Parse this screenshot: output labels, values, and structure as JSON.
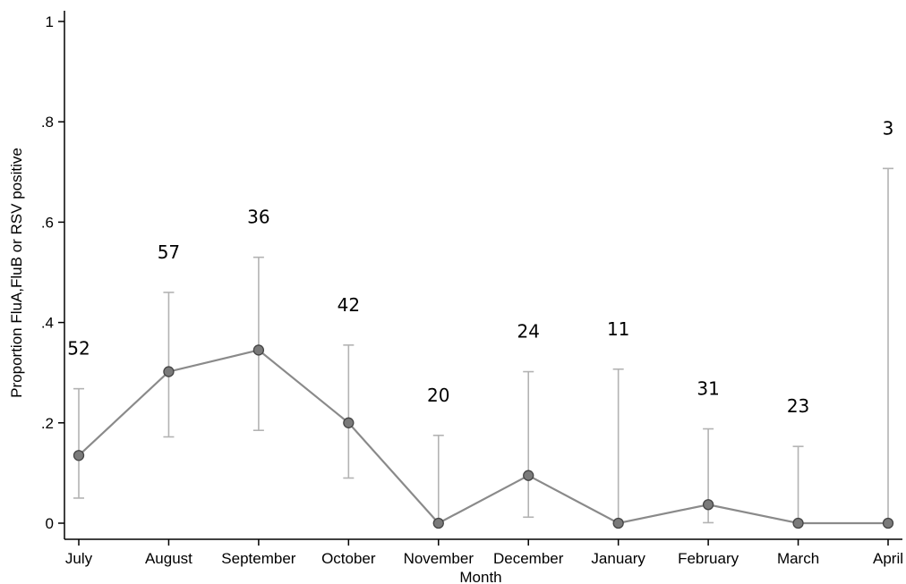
{
  "chart_data": {
    "type": "line",
    "xlabel": "Month",
    "ylabel": "Proportion FluA,FluB or RSV positive",
    "ylim": [
      0,
      1
    ],
    "yticks": [
      {
        "value": 0,
        "label": "0"
      },
      {
        "value": 0.2,
        "label": ".2"
      },
      {
        "value": 0.4,
        "label": ".4"
      },
      {
        "value": 0.6,
        "label": ".6"
      },
      {
        "value": 0.8,
        "label": ".8"
      },
      {
        "value": 1,
        "label": "1"
      }
    ],
    "categories": [
      "July",
      "August",
      "September",
      "October",
      "November",
      "December",
      "January",
      "February",
      "March",
      "April"
    ],
    "values": [
      0.135,
      0.302,
      0.345,
      0.2,
      0.0,
      0.095,
      0.0,
      0.037,
      0.0,
      0.0
    ],
    "ci_lower": [
      0.05,
      0.172,
      0.185,
      0.09,
      0.0,
      0.012,
      0.0,
      0.001,
      0.0,
      0.0
    ],
    "ci_upper": [
      0.268,
      0.46,
      0.53,
      0.355,
      0.175,
      0.302,
      0.307,
      0.188,
      0.153,
      0.707
    ],
    "n_labels": [
      "52",
      "57",
      "36",
      "42",
      "20",
      "24",
      "11",
      "31",
      "23",
      "3"
    ],
    "colors": {
      "line": "#8a8a8a",
      "marker_fill": "#7a7a7a",
      "marker_stroke": "#444444",
      "error_bar": "#b3b3b3",
      "axis": "#000000"
    }
  }
}
